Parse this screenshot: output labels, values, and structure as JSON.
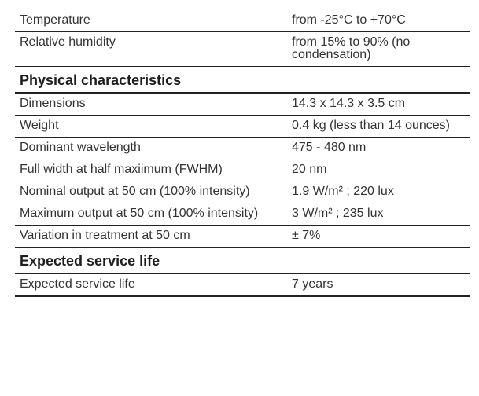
{
  "environment_rows": [
    {
      "label": "Temperature",
      "value": "from -25°C to +70°C"
    },
    {
      "label": "Relative humidity",
      "value": "from 15% to 90% (no condensation)"
    }
  ],
  "physical": {
    "heading": "Physical characteristics",
    "rows": [
      {
        "label": "Dimensions",
        "value": "14.3 x 14.3 x 3.5 cm"
      },
      {
        "label": "Weight",
        "value": "0.4 kg (less than 14 ounces)"
      },
      {
        "label": "Dominant wavelength",
        "value": "475 - 480 nm"
      },
      {
        "label": "Full width at half maxiimum (FWHM)",
        "value": "20 nm"
      },
      {
        "label": "Nominal output at 50 cm (100% intensity)",
        "value": "1.9 W/m² ; 220 lux"
      },
      {
        "label": "Maximum output at 50 cm (100% intensity)",
        "value": "3 W/m² ; 235 lux"
      },
      {
        "label": "Variation in treatment at 50 cm",
        "value": "± 7%"
      }
    ]
  },
  "service": {
    "heading": "Expected service life",
    "rows": [
      {
        "label": "Expected service life",
        "value": "7 years"
      }
    ]
  }
}
